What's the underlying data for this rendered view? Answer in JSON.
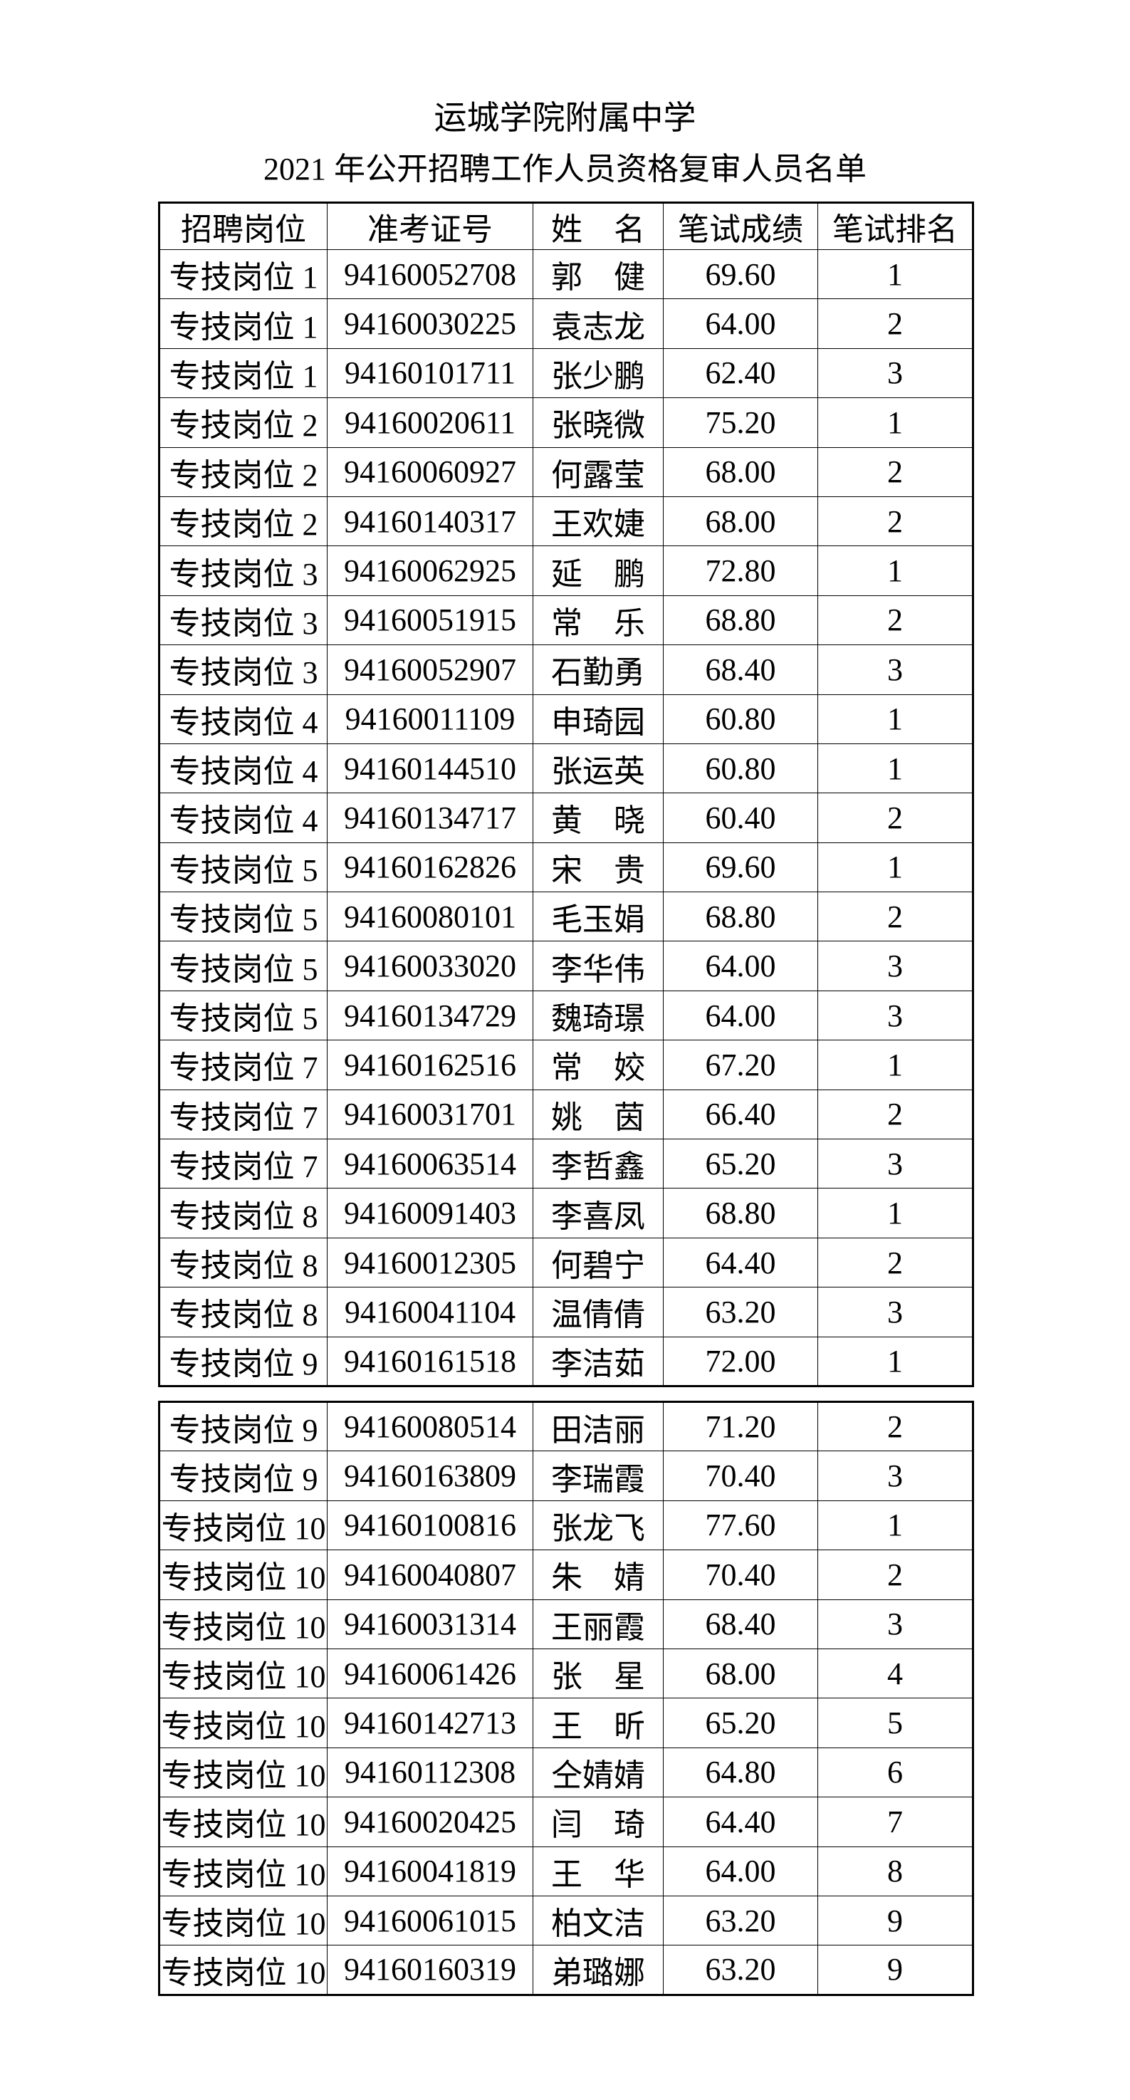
{
  "page": {
    "title": "运城学院附属中学",
    "subtitle": "2021 年公开招聘工作人员资格复审人员名单"
  },
  "columns": [
    "招聘岗位",
    "准考证号",
    "姓　名",
    "笔试成绩",
    "笔试排名"
  ],
  "tables": [
    {
      "rows": [
        [
          "专技岗位 1",
          "94160052708",
          "郭　健",
          "69.60",
          "1"
        ],
        [
          "专技岗位 1",
          "94160030225",
          "袁志龙",
          "64.00",
          "2"
        ],
        [
          "专技岗位 1",
          "94160101711",
          "张少鹏",
          "62.40",
          "3"
        ],
        [
          "专技岗位 2",
          "94160020611",
          "张晓微",
          "75.20",
          "1"
        ],
        [
          "专技岗位 2",
          "94160060927",
          "何露莹",
          "68.00",
          "2"
        ],
        [
          "专技岗位 2",
          "94160140317",
          "王欢婕",
          "68.00",
          "2"
        ],
        [
          "专技岗位 3",
          "94160062925",
          "延　鹏",
          "72.80",
          "1"
        ],
        [
          "专技岗位 3",
          "94160051915",
          "常　乐",
          "68.80",
          "2"
        ],
        [
          "专技岗位 3",
          "94160052907",
          "石勤勇",
          "68.40",
          "3"
        ],
        [
          "专技岗位 4",
          "94160011109",
          "申琦园",
          "60.80",
          "1"
        ],
        [
          "专技岗位 4",
          "94160144510",
          "张运英",
          "60.80",
          "1"
        ],
        [
          "专技岗位 4",
          "94160134717",
          "黄　晓",
          "60.40",
          "2"
        ],
        [
          "专技岗位 5",
          "94160162826",
          "宋　贵",
          "69.60",
          "1"
        ],
        [
          "专技岗位 5",
          "94160080101",
          "毛玉娟",
          "68.80",
          "2"
        ],
        [
          "专技岗位 5",
          "94160033020",
          "李华伟",
          "64.00",
          "3"
        ],
        [
          "专技岗位 5",
          "94160134729",
          "魏琦璟",
          "64.00",
          "3"
        ],
        [
          "专技岗位 7",
          "94160162516",
          "常　姣",
          "67.20",
          "1"
        ],
        [
          "专技岗位 7",
          "94160031701",
          "姚　茵",
          "66.40",
          "2"
        ],
        [
          "专技岗位 7",
          "94160063514",
          "李哲鑫",
          "65.20",
          "3"
        ],
        [
          "专技岗位 8",
          "94160091403",
          "李喜凤",
          "68.80",
          "1"
        ],
        [
          "专技岗位 8",
          "94160012305",
          "何碧宁",
          "64.40",
          "2"
        ],
        [
          "专技岗位 8",
          "94160041104",
          "温倩倩",
          "63.20",
          "3"
        ],
        [
          "专技岗位 9",
          "94160161518",
          "李洁茹",
          "72.00",
          "1"
        ]
      ]
    },
    {
      "rows": [
        [
          "专技岗位 9",
          "94160080514",
          "田洁丽",
          "71.20",
          "2"
        ],
        [
          "专技岗位 9",
          "94160163809",
          "李瑞霞",
          "70.40",
          "3"
        ],
        [
          "专技岗位 10",
          "94160100816",
          "张龙飞",
          "77.60",
          "1"
        ],
        [
          "专技岗位 10",
          "94160040807",
          "朱　婧",
          "70.40",
          "2"
        ],
        [
          "专技岗位 10",
          "94160031314",
          "王丽霞",
          "68.40",
          "3"
        ],
        [
          "专技岗位 10",
          "94160061426",
          "张　星",
          "68.00",
          "4"
        ],
        [
          "专技岗位 10",
          "94160142713",
          "王　昕",
          "65.20",
          "5"
        ],
        [
          "专技岗位 10",
          "94160112308",
          "仝婧婧",
          "64.80",
          "6"
        ],
        [
          "专技岗位 10",
          "94160020425",
          "闫　琦",
          "64.40",
          "7"
        ],
        [
          "专技岗位 10",
          "94160041819",
          "王　华",
          "64.00",
          "8"
        ],
        [
          "专技岗位 10",
          "94160061015",
          "柏文洁",
          "63.20",
          "9"
        ],
        [
          "专技岗位 10",
          "94160160319",
          "弟璐娜",
          "63.20",
          "9"
        ]
      ]
    }
  ]
}
